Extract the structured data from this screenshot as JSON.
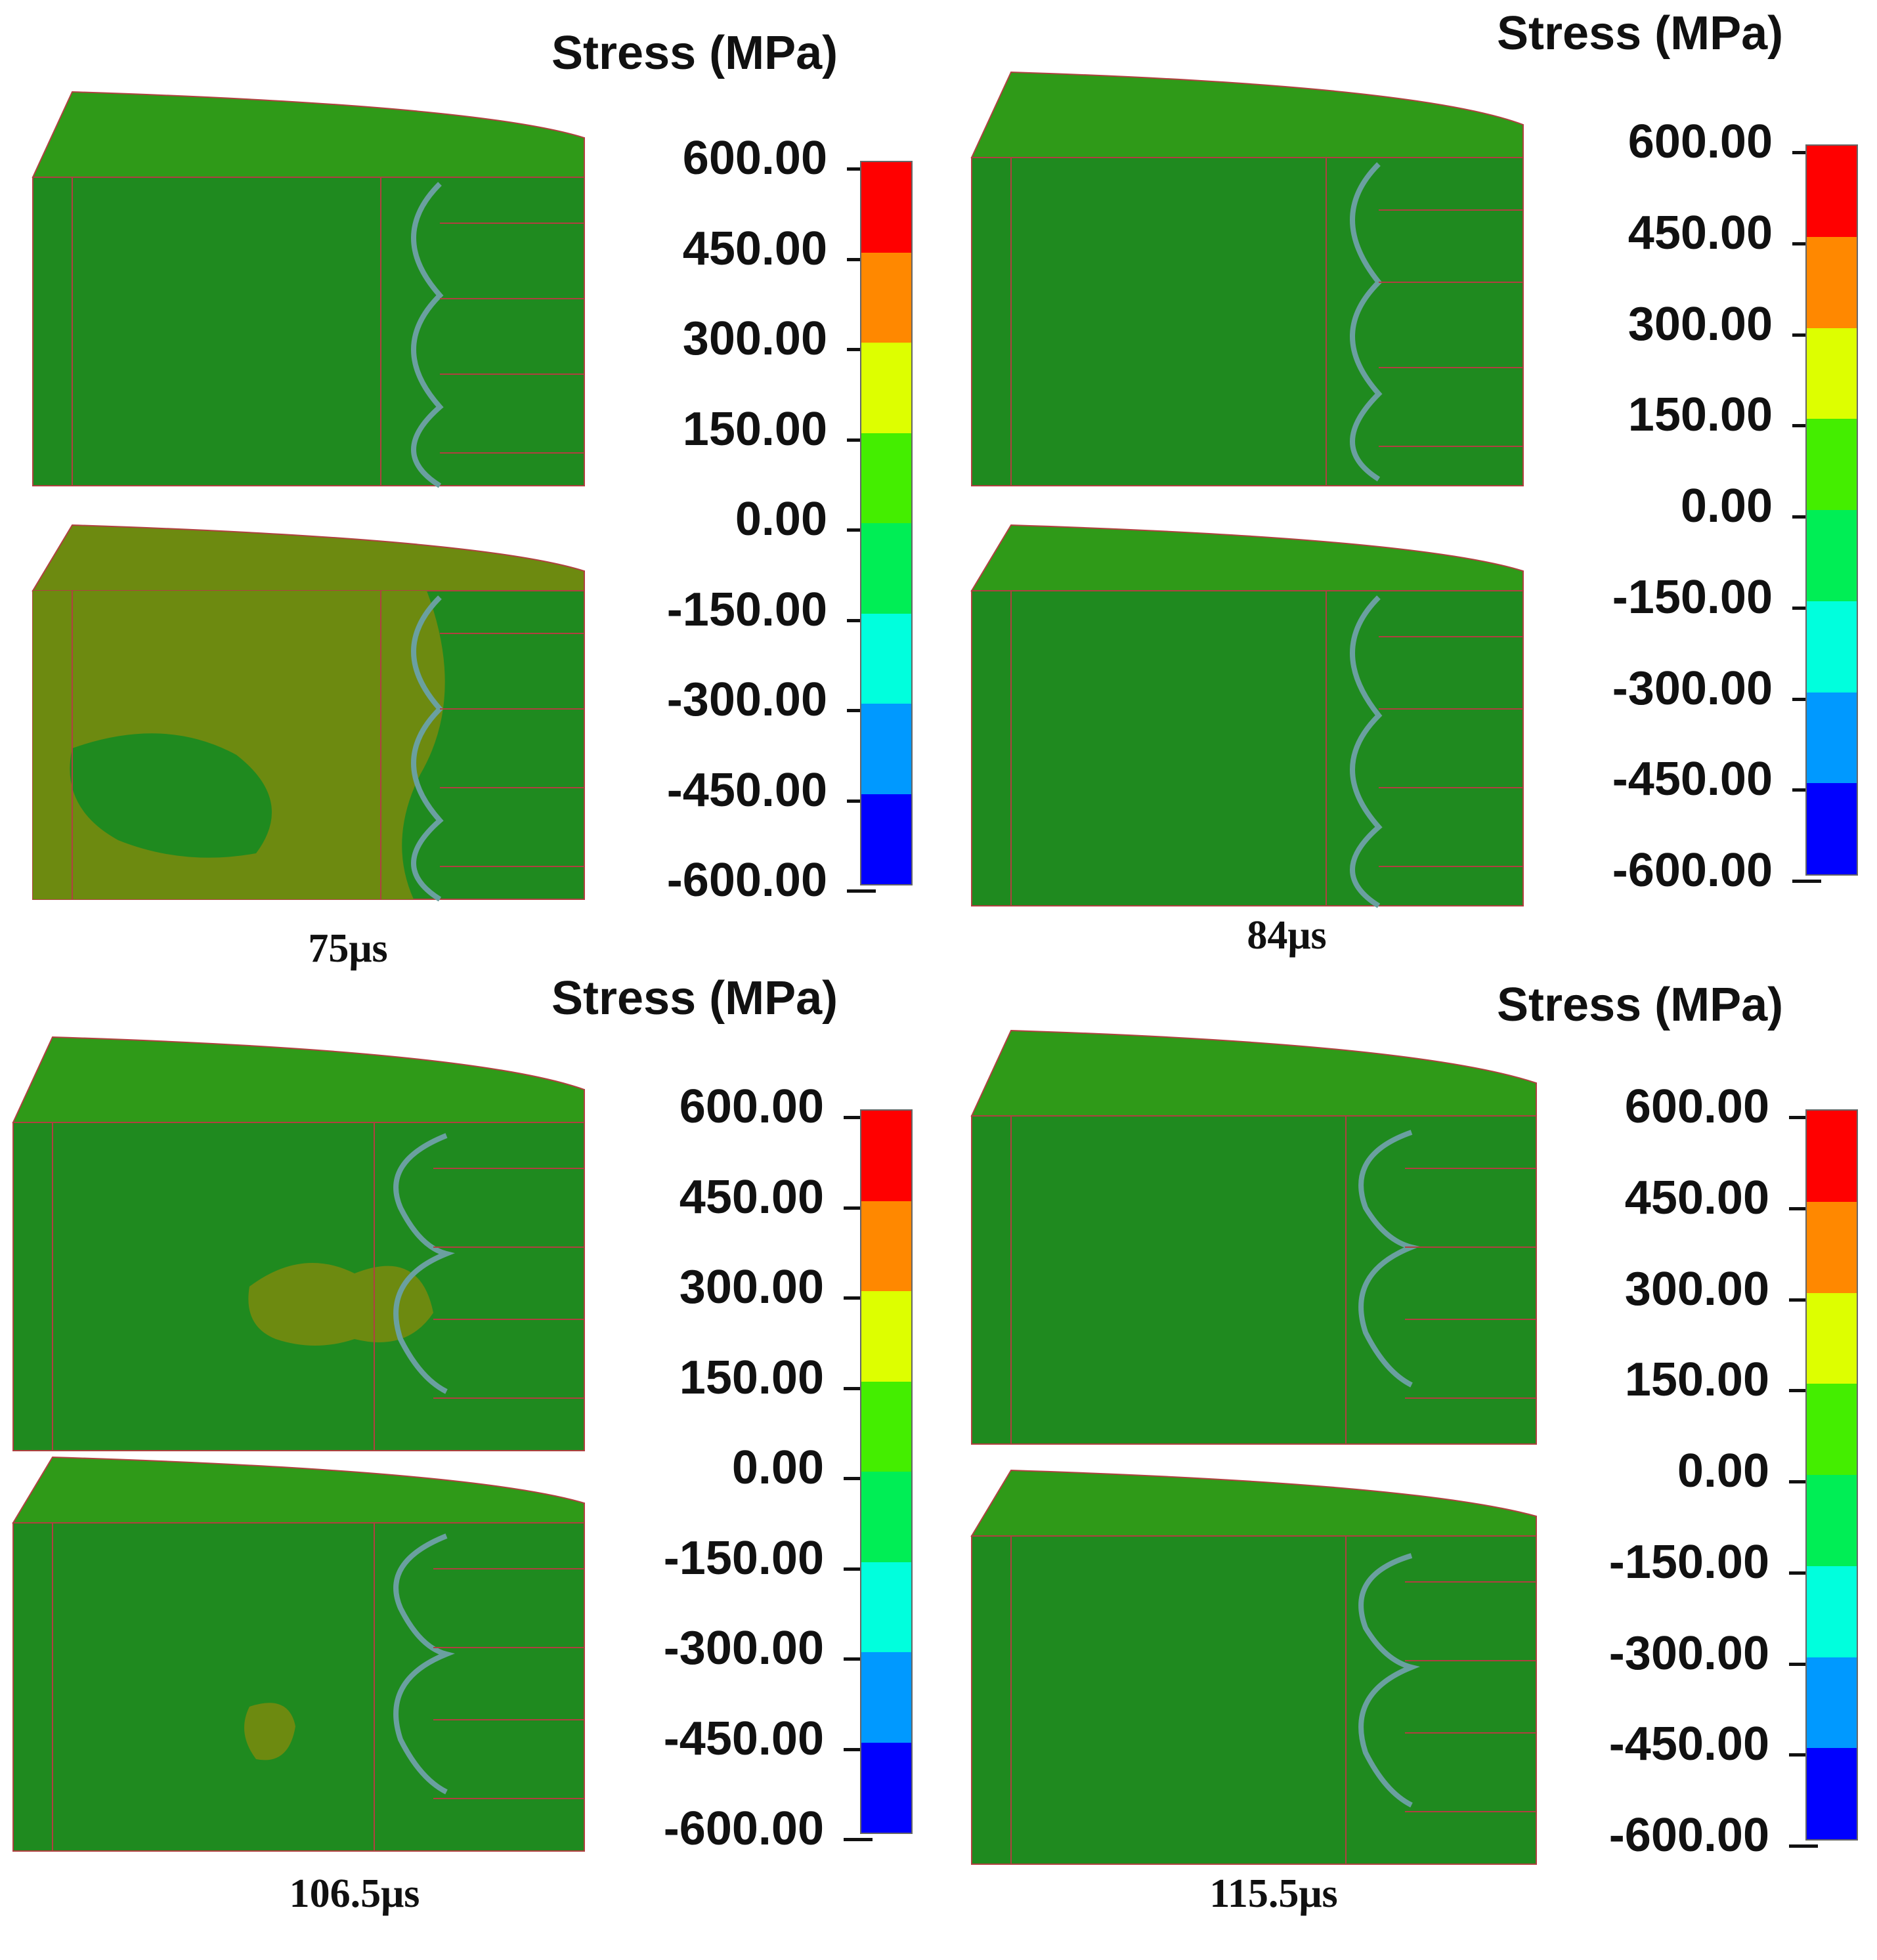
{
  "legend": {
    "title": "Stress (MPa)",
    "ticks": [
      "600.00",
      "450.00",
      "300.00",
      "150.00",
      "0.00",
      "-150.00",
      "-300.00",
      "-450.00",
      "-600.00"
    ],
    "colors": [
      "#ff0000",
      "#ff8800",
      "#ddff00",
      "#44ee00",
      "#00ee55",
      "#00ffdd",
      "#0099ff",
      "#0000ff"
    ]
  },
  "model_colors": {
    "top_face": "#2f9a18",
    "front_face": "#1f8a1f",
    "olive_zone": "#6d8a10",
    "outline": "#b04040"
  },
  "panels": [
    {
      "time": "75μs"
    },
    {
      "time": "84μs"
    },
    {
      "time": "106.5μs"
    },
    {
      "time": "115.5μs"
    }
  ]
}
